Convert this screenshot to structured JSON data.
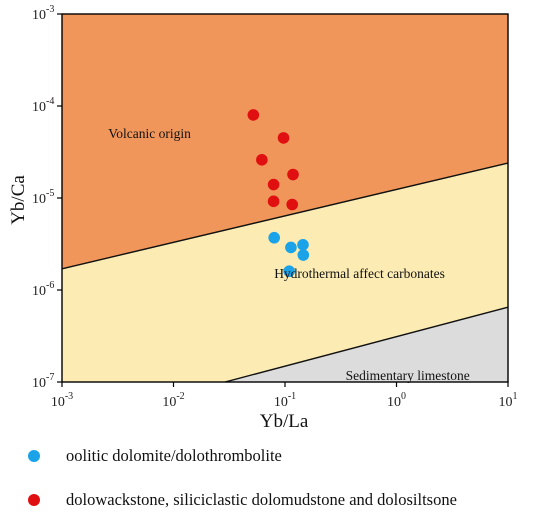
{
  "chart_data": {
    "type": "scatter",
    "xscale": "log",
    "yscale": "log",
    "xlim": [
      0.001,
      10
    ],
    "ylim": [
      1e-07,
      0.001
    ],
    "xlabel": "Yb/La",
    "ylabel": "Yb/Ca",
    "x_ticks": [
      {
        "value": 0.001,
        "base": "10",
        "exp": "-3"
      },
      {
        "value": 0.01,
        "base": "10",
        "exp": "-2"
      },
      {
        "value": 0.1,
        "base": "10",
        "exp": "-1"
      },
      {
        "value": 1,
        "base": "10",
        "exp": "0"
      },
      {
        "value": 10,
        "base": "10",
        "exp": "1"
      }
    ],
    "y_ticks": [
      {
        "value": 0.001,
        "base": "10",
        "exp": "-3"
      },
      {
        "value": 0.0001,
        "base": "10",
        "exp": "-4"
      },
      {
        "value": 1e-05,
        "base": "10",
        "exp": "-5"
      },
      {
        "value": 1e-06,
        "base": "10",
        "exp": "-6"
      },
      {
        "value": 1e-07,
        "base": "10",
        "exp": "-7"
      }
    ],
    "regions": [
      {
        "label": "Volcanic origin",
        "color": "#f0965a",
        "label_at": [
          0.0026,
          4.5e-05
        ]
      },
      {
        "label": "Hydrothermal affect carbonates",
        "color": "#fcecb4",
        "label_at": [
          0.08,
          1.35e-06
        ]
      },
      {
        "label": "Sedimentary limestone",
        "color": "#dcdcdc",
        "label_at": [
          0.35,
          1.05e-07
        ]
      }
    ],
    "boundaries": [
      {
        "from": [
          0.001,
          1.7e-06
        ],
        "to": [
          10,
          2.4e-05
        ]
      },
      {
        "from": [
          0.029,
          1e-07
        ],
        "to": [
          10,
          6.5e-07
        ]
      }
    ],
    "series": [
      {
        "name": "oolitic dolomite/dolothrombolite",
        "color": "#1aa3e8",
        "points": [
          {
            "x": 0.08,
            "y": 3.7e-06
          },
          {
            "x": 0.113,
            "y": 2.9e-06
          },
          {
            "x": 0.145,
            "y": 3.1e-06
          },
          {
            "x": 0.146,
            "y": 2.4e-06
          },
          {
            "x": 0.109,
            "y": 1.6e-06
          }
        ]
      },
      {
        "name": "dolowackstone, siliciclastic dolomudstone and dolosiltsone",
        "color": "#e01010",
        "points": [
          {
            "x": 0.052,
            "y": 8e-05
          },
          {
            "x": 0.097,
            "y": 4.5e-05
          },
          {
            "x": 0.062,
            "y": 2.6e-05
          },
          {
            "x": 0.118,
            "y": 1.8e-05
          },
          {
            "x": 0.079,
            "y": 1.4e-05
          },
          {
            "x": 0.079,
            "y": 9.2e-06
          },
          {
            "x": 0.116,
            "y": 8.5e-06
          }
        ]
      }
    ]
  }
}
